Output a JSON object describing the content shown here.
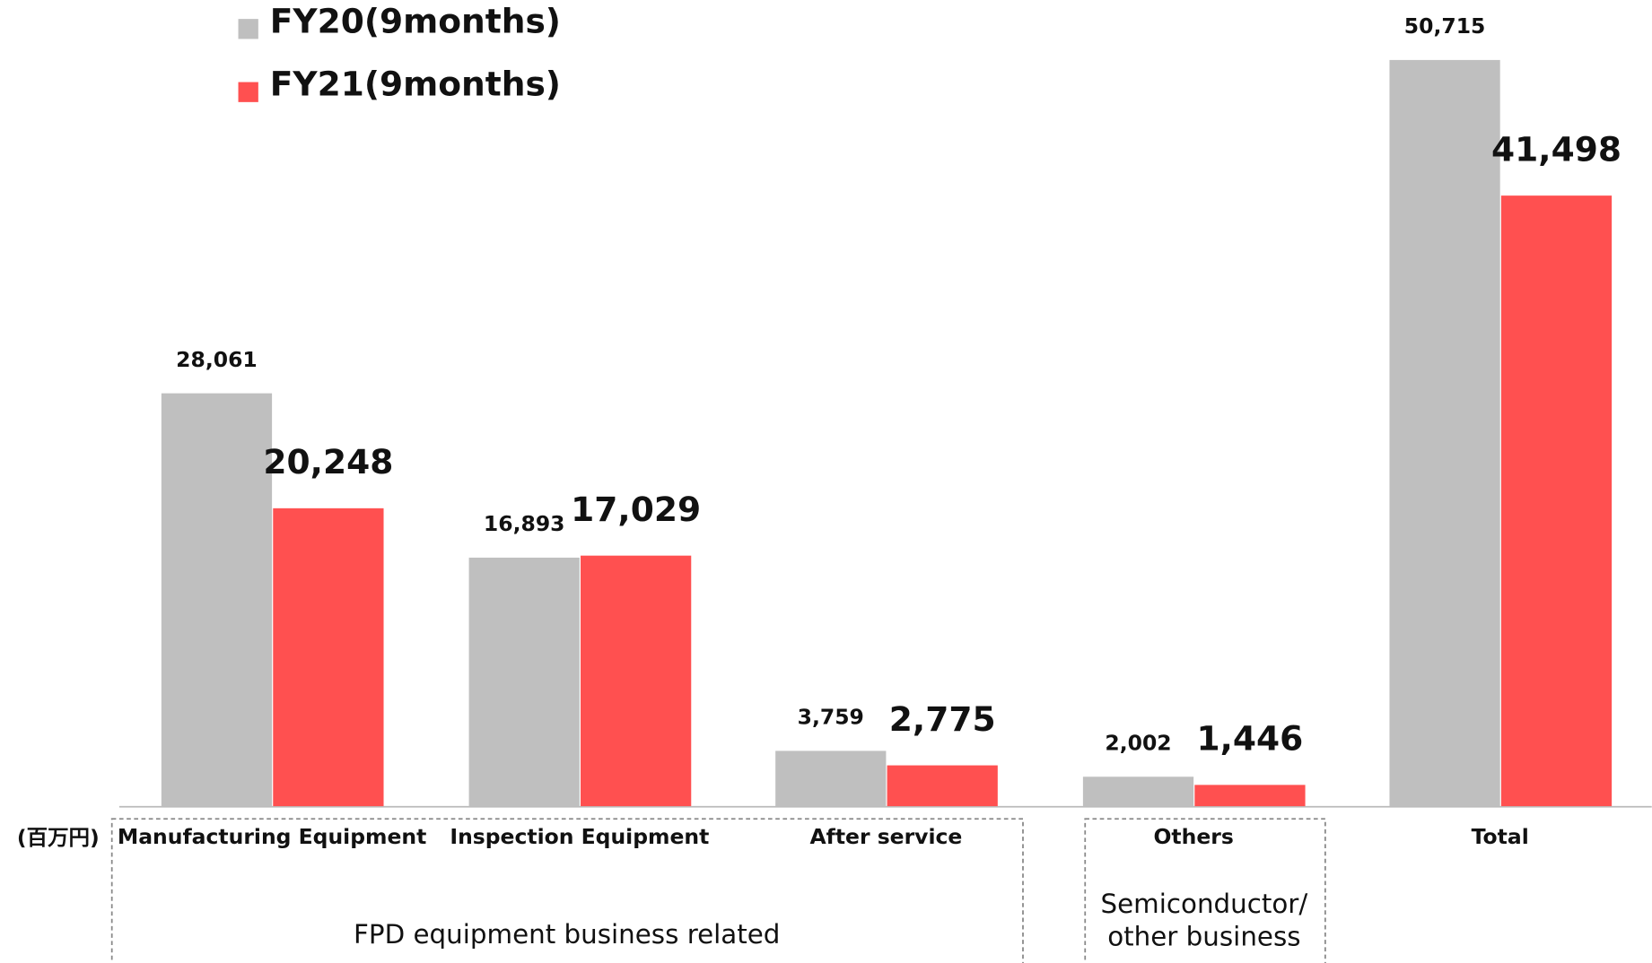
{
  "chart_data": {
    "type": "bar",
    "categories": [
      "Manufacturing Equipment",
      "Inspection Equipment",
      "After service",
      "Others",
      "Total"
    ],
    "series": [
      {
        "name": "FY20(9months)",
        "color": "#bfbfbf",
        "values": [
          28061,
          16893,
          3759,
          2002,
          50715
        ],
        "value_labels": [
          "28,061",
          "16,893",
          "3,759",
          "2,002",
          "50,715"
        ]
      },
      {
        "name": "FY21(9months)",
        "color": "#ff5050",
        "values": [
          20248,
          17029,
          2775,
          1446,
          41498
        ],
        "value_labels": [
          "20,248",
          "17,029",
          "2,775",
          "1,446",
          "41,498"
        ]
      }
    ],
    "unit": "(百万円)",
    "groups": [
      {
        "label": [
          "FPD equipment business related"
        ]
      },
      {
        "label": [
          "Semiconductor/",
          "other business"
        ]
      }
    ]
  }
}
